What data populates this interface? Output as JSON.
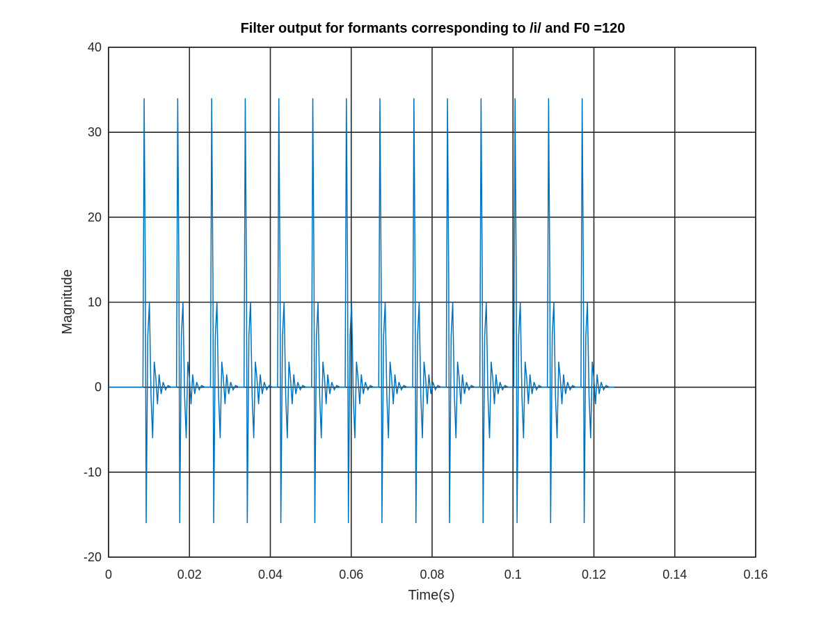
{
  "chart_data": {
    "type": "line",
    "title": "Filter output for formants corresponding to /i/ and F0 =120",
    "xlabel": "Time(s)",
    "ylabel": "Magnitude",
    "xlim": [
      0,
      0.16
    ],
    "ylim": [
      -20,
      40
    ],
    "xticks": [
      0,
      0.02,
      0.04,
      0.06,
      0.08,
      0.1,
      0.12,
      0.14,
      0.16
    ],
    "xtick_labels": [
      "0",
      "0.02",
      "0.04",
      "0.06",
      "0.08",
      "0.1",
      "0.12",
      "0.14",
      "0.16"
    ],
    "yticks": [
      -20,
      -10,
      0,
      10,
      20,
      30,
      40
    ],
    "ytick_labels": [
      "-20",
      "-10",
      "0",
      "10",
      "20",
      "30",
      "40"
    ],
    "grid": true,
    "series": [
      {
        "color": "#0072BD",
        "signal_end": 0.125,
        "pulse_times": [
          0.0085,
          0.0168,
          0.0252,
          0.0335,
          0.0418,
          0.0502,
          0.0585,
          0.0668,
          0.0752,
          0.0835,
          0.0918,
          0.1002,
          0.1085,
          0.1168
        ],
        "pulse_shape": [
          [
            0.0,
            0
          ],
          [
            0.0003,
            34
          ],
          [
            0.0006,
            13
          ],
          [
            0.0008,
            -16
          ],
          [
            0.0012,
            6
          ],
          [
            0.0016,
            10
          ],
          [
            0.002,
            -1
          ],
          [
            0.0024,
            -6
          ],
          [
            0.0028,
            3
          ],
          [
            0.0032,
            1
          ],
          [
            0.0036,
            -2
          ],
          [
            0.004,
            1.5
          ],
          [
            0.0045,
            -0.8
          ],
          [
            0.005,
            0.6
          ],
          [
            0.0056,
            -0.3
          ],
          [
            0.0062,
            0.2
          ],
          [
            0.007,
            0
          ]
        ]
      }
    ]
  }
}
